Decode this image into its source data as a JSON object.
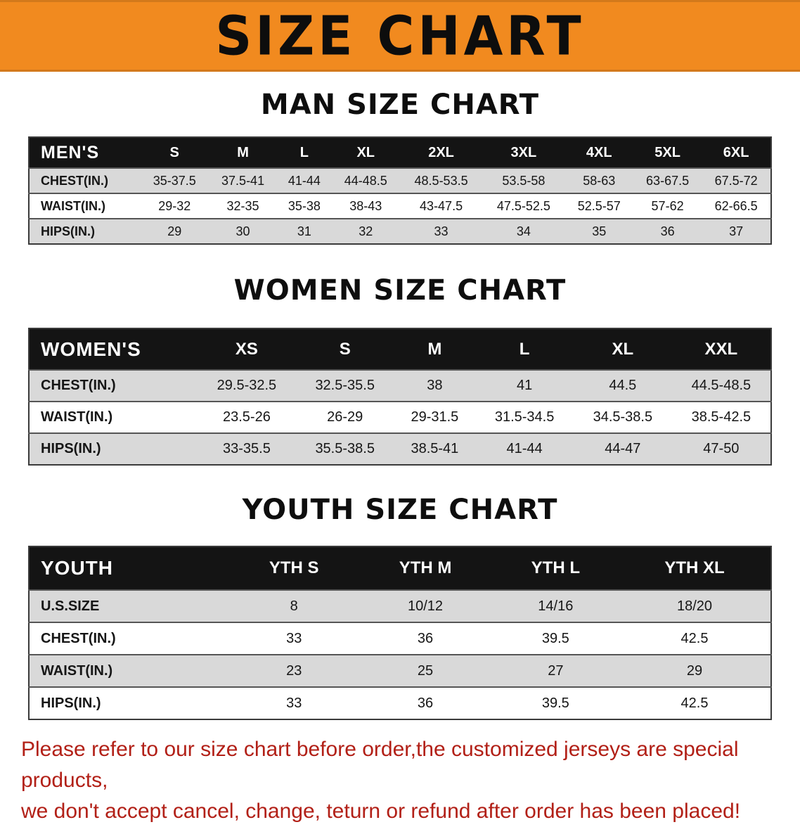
{
  "banner": {
    "title": "SIZE CHART"
  },
  "colors": {
    "banner_orange": "#f18a1f",
    "header_black": "#141414",
    "row_shade": "#d9d9d9",
    "footer_red": "#b22017"
  },
  "sections": [
    {
      "heading": "MAN SIZE CHART",
      "table": {
        "header": [
          "MEN'S",
          "S",
          "M",
          "L",
          "XL",
          "2XL",
          "3XL",
          "4XL",
          "5XL",
          "6XL"
        ],
        "rows": [
          [
            "CHEST(IN.)",
            "35-37.5",
            "37.5-41",
            "41-44",
            "44-48.5",
            "48.5-53.5",
            "53.5-58",
            "58-63",
            "63-67.5",
            "67.5-72"
          ],
          [
            "WAIST(IN.)",
            "29-32",
            "32-35",
            "35-38",
            "38-43",
            "43-47.5",
            "47.5-52.5",
            "52.5-57",
            "57-62",
            "62-66.5"
          ],
          [
            "HIPS(IN.)",
            "29",
            "30",
            "31",
            "32",
            "33",
            "34",
            "35",
            "36",
            "37"
          ]
        ]
      }
    },
    {
      "heading": "WOMEN SIZE CHART",
      "table": {
        "header": [
          "WOMEN'S",
          "XS",
          "S",
          "M",
          "L",
          "XL",
          "XXL"
        ],
        "rows": [
          [
            "CHEST(IN.)",
            "29.5-32.5",
            "32.5-35.5",
            "38",
            "41",
            "44.5",
            "44.5-48.5"
          ],
          [
            "WAIST(IN.)",
            "23.5-26",
            "26-29",
            "29-31.5",
            "31.5-34.5",
            "34.5-38.5",
            "38.5-42.5"
          ],
          [
            "HIPS(IN.)",
            "33-35.5",
            "35.5-38.5",
            "38.5-41",
            "41-44",
            "44-47",
            "47-50"
          ]
        ]
      }
    },
    {
      "heading": "YOUTH SIZE CHART",
      "table": {
        "header": [
          "YOUTH",
          "YTH S",
          "YTH M",
          "YTH L",
          "YTH XL"
        ],
        "rows": [
          [
            "U.S.SIZE",
            "8",
            "10/12",
            "14/16",
            "18/20"
          ],
          [
            "CHEST(IN.)",
            "33",
            "36",
            "39.5",
            "42.5"
          ],
          [
            "WAIST(IN.)",
            "23",
            "25",
            "27",
            "29"
          ],
          [
            "HIPS(IN.)",
            "33",
            "36",
            "39.5",
            "42.5"
          ]
        ]
      }
    }
  ],
  "footer": {
    "line1": "Please refer to our size chart before order,the customized jerseys are special products,",
    "line2": "we don't accept cancel, change, teturn or refund after order has been placed!"
  }
}
